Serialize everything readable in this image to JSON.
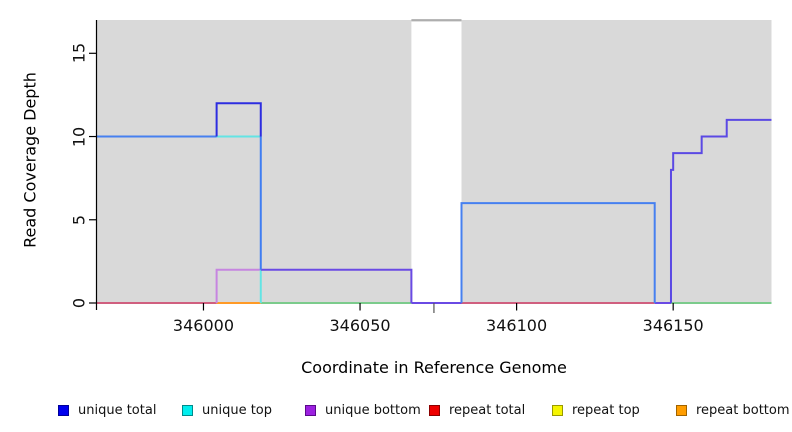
{
  "figure": {
    "background": "#ffffff",
    "plot_background": "#d9d9d9"
  },
  "chart_data": {
    "type": "line",
    "subtype": "step-coverage-plot",
    "title": "",
    "xlabel": "Coordinate in Reference Genome",
    "ylabel": "Read Coverage Depth",
    "xlim": [
      345966,
      346181.4
    ],
    "ylim": [
      0,
      17
    ],
    "x_ticks": [
      346000,
      346050,
      346100,
      346150
    ],
    "y_ticks": [
      0,
      5,
      10,
      15
    ],
    "minor_tick": {
      "value": 346073.6,
      "color": "#555555"
    },
    "grid": false,
    "legend_position": "bottom",
    "plot_bg": "#d9d9d9",
    "unshaded_region": {
      "x0": 346066.4,
      "x1": 346082.4,
      "fill": "#ffffff",
      "top_line_color": "#a0a0a0",
      "top_line_y": 17
    },
    "legend": [
      {
        "label": "unique total",
        "fill": "#0000ee",
        "border": "#000099"
      },
      {
        "label": "unique top",
        "fill": "#00eeee",
        "border": "#008b8b"
      },
      {
        "label": "unique bottom",
        "fill": "#9c20e0",
        "border": "#5a0a8a"
      },
      {
        "label": "repeat total",
        "fill": "#ee0000",
        "border": "#8b0000"
      },
      {
        "label": "repeat top",
        "fill": "#f5f500",
        "border": "#999900"
      },
      {
        "label": "repeat bottom",
        "fill": "#ff9d00",
        "border": "#a06300"
      }
    ],
    "segments": [
      {
        "name": "baseline-rose-left",
        "color": "#d05f7f",
        "width": 2,
        "points": [
          [
            345966,
            0
          ],
          [
            346004.2,
            0
          ]
        ]
      },
      {
        "name": "baseline-orange",
        "color": "#ff9a26",
        "width": 2,
        "points": [
          [
            346004.2,
            0
          ],
          [
            346018.3,
            0
          ]
        ]
      },
      {
        "name": "baseline-green-mid",
        "color": "#7bcb8c",
        "width": 2,
        "points": [
          [
            346018.3,
            0
          ],
          [
            346066.4,
            0
          ]
        ]
      },
      {
        "name": "baseline-indigo-gap",
        "color": "#6a4ae4",
        "width": 2,
        "points": [
          [
            346066.4,
            0
          ],
          [
            346082.4,
            0
          ]
        ]
      },
      {
        "name": "baseline-rose-right",
        "color": "#d05f7f",
        "width": 2,
        "points": [
          [
            346082.4,
            0
          ],
          [
            346144.1,
            0
          ]
        ]
      },
      {
        "name": "baseline-indigo-right",
        "color": "#6a4ae4",
        "width": 2,
        "points": [
          [
            346144.1,
            0
          ],
          [
            346149.3,
            0
          ]
        ]
      },
      {
        "name": "baseline-green-right",
        "color": "#7bcb8c",
        "width": 2,
        "points": [
          [
            346149.3,
            0
          ],
          [
            346181.4,
            0
          ]
        ]
      },
      {
        "name": "unique-bottom-step",
        "color": "#c685e0",
        "width": 2,
        "points": [
          [
            346004.2,
            0
          ],
          [
            346004.2,
            2
          ],
          [
            346018.3,
            2
          ]
        ]
      },
      {
        "name": "unique-top-level10",
        "color": "#63e4e4",
        "width": 2,
        "points": [
          [
            346004.2,
            10
          ],
          [
            346018.3,
            10
          ]
        ]
      },
      {
        "name": "unique-top-drop",
        "color": "#63e4e4",
        "width": 2,
        "points": [
          [
            346018.3,
            2
          ],
          [
            346018.3,
            0
          ]
        ]
      },
      {
        "name": "overlap-level2",
        "color": "#6a4ae4",
        "width": 2,
        "points": [
          [
            346018.3,
            2
          ],
          [
            346066.4,
            2
          ],
          [
            346066.4,
            0
          ]
        ]
      },
      {
        "name": "unique-total-level10",
        "color": "#4680f0",
        "width": 2,
        "points": [
          [
            345966,
            10
          ],
          [
            346004.2,
            10
          ]
        ]
      },
      {
        "name": "unique-total-peak12",
        "color": "#2d2de0",
        "width": 2,
        "points": [
          [
            346004.2,
            10
          ],
          [
            346004.2,
            12
          ],
          [
            346018.3,
            12
          ],
          [
            346018.3,
            10
          ]
        ]
      },
      {
        "name": "unique-total-drop",
        "color": "#3f7df2",
        "width": 2,
        "points": [
          [
            346018.3,
            10
          ],
          [
            346018.3,
            2
          ]
        ]
      },
      {
        "name": "unique-total-level6",
        "color": "#4680f0",
        "width": 2,
        "points": [
          [
            346082.4,
            0
          ],
          [
            346082.4,
            6
          ],
          [
            346144.1,
            6
          ],
          [
            346144.1,
            0
          ]
        ]
      },
      {
        "name": "staircase-right",
        "color": "#5b49e4",
        "width": 2,
        "points": [
          [
            346149.3,
            0
          ],
          [
            346149.3,
            8
          ],
          [
            346150,
            8
          ],
          [
            346150,
            9
          ],
          [
            346159.1,
            9
          ],
          [
            346159.1,
            10
          ],
          [
            346167.1,
            10
          ],
          [
            346167.1,
            11
          ],
          [
            346181.4,
            11
          ]
        ]
      },
      {
        "name": "clipped-top-line",
        "color": "#a0a0a0",
        "width": 1.5,
        "points": [
          [
            346066.4,
            17
          ],
          [
            346082.4,
            17
          ]
        ]
      }
    ]
  }
}
